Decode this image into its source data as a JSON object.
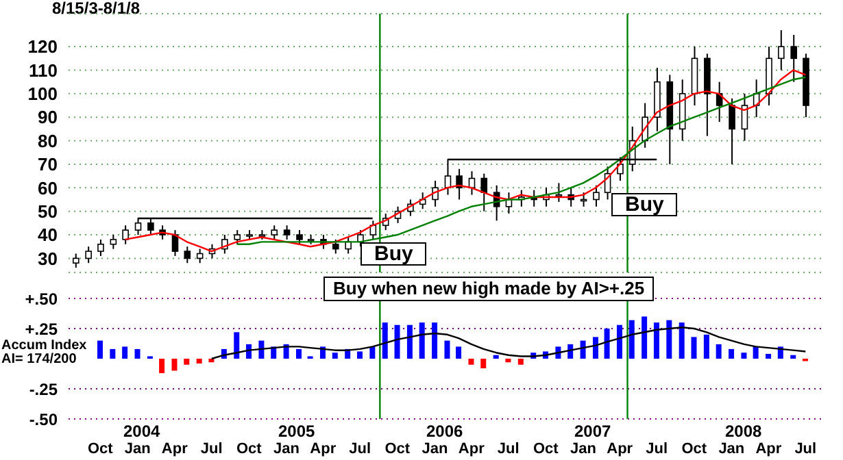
{
  "chart_data": [
    {
      "type": "candlestick",
      "title": "8/15/3-8/1/8",
      "color": "#000000",
      "x": [
        "2003-08",
        "2003-09",
        "2003-10",
        "2003-11",
        "2003-12",
        "2004-01",
        "2004-02",
        "2004-03",
        "2004-04",
        "2004-05",
        "2004-06",
        "2004-07",
        "2004-08",
        "2004-09",
        "2004-10",
        "2004-11",
        "2004-12",
        "2005-01",
        "2005-02",
        "2005-03",
        "2005-04",
        "2005-05",
        "2005-06",
        "2005-07",
        "2005-08",
        "2005-09",
        "2005-10",
        "2005-11",
        "2005-12",
        "2006-01",
        "2006-02",
        "2006-03",
        "2006-04",
        "2006-05",
        "2006-06",
        "2006-07",
        "2006-08",
        "2006-09",
        "2006-10",
        "2006-11",
        "2006-12",
        "2007-01",
        "2007-02",
        "2007-03",
        "2007-04",
        "2007-05",
        "2007-06",
        "2007-07",
        "2007-08",
        "2007-09",
        "2007-10",
        "2007-11",
        "2007-12",
        "2008-01",
        "2008-02",
        "2008-03",
        "2008-04",
        "2008-05",
        "2008-06",
        "2008-07"
      ],
      "ohlc": [
        [
          28,
          32,
          26,
          30
        ],
        [
          30,
          35,
          28,
          33
        ],
        [
          33,
          38,
          31,
          36
        ],
        [
          36,
          40,
          34,
          38
        ],
        [
          38,
          44,
          36,
          42
        ],
        [
          42,
          47,
          40,
          45
        ],
        [
          45,
          47,
          40,
          42
        ],
        [
          42,
          44,
          38,
          40
        ],
        [
          40,
          42,
          31,
          33
        ],
        [
          33,
          35,
          28,
          30
        ],
        [
          30,
          34,
          28,
          32
        ],
        [
          32,
          36,
          30,
          34
        ],
        [
          34,
          40,
          32,
          38
        ],
        [
          38,
          42,
          36,
          40
        ],
        [
          40,
          42,
          38,
          40
        ],
        [
          40,
          42,
          38,
          40
        ],
        [
          40,
          44,
          38,
          42
        ],
        [
          42,
          44,
          38,
          40
        ],
        [
          40,
          42,
          36,
          38
        ],
        [
          38,
          40,
          36,
          38
        ],
        [
          38,
          40,
          34,
          36
        ],
        [
          36,
          38,
          32,
          34
        ],
        [
          34,
          39,
          32,
          37
        ],
        [
          37,
          42,
          35,
          40
        ],
        [
          40,
          46,
          38,
          44
        ],
        [
          44,
          49,
          42,
          47
        ],
        [
          47,
          52,
          45,
          50
        ],
        [
          50,
          55,
          48,
          53
        ],
        [
          53,
          58,
          51,
          55
        ],
        [
          55,
          63,
          52,
          60
        ],
        [
          60,
          72,
          57,
          65
        ],
        [
          65,
          68,
          55,
          60
        ],
        [
          60,
          67,
          57,
          64
        ],
        [
          64,
          66,
          50,
          58
        ],
        [
          58,
          61,
          46,
          52
        ],
        [
          52,
          58,
          49,
          55
        ],
        [
          55,
          59,
          52,
          56
        ],
        [
          56,
          59,
          52,
          55
        ],
        [
          55,
          60,
          52,
          57
        ],
        [
          57,
          62,
          54,
          57
        ],
        [
          57,
          60,
          52,
          55
        ],
        [
          55,
          58,
          52,
          55
        ],
        [
          55,
          61,
          52,
          58
        ],
        [
          58,
          69,
          55,
          66
        ],
        [
          66,
          73,
          63,
          70
        ],
        [
          70,
          86,
          67,
          80
        ],
        [
          80,
          96,
          77,
          90
        ],
        [
          90,
          111,
          84,
          105
        ],
        [
          105,
          108,
          70,
          85
        ],
        [
          85,
          106,
          80,
          100
        ],
        [
          100,
          120,
          95,
          115
        ],
        [
          115,
          117,
          82,
          100
        ],
        [
          100,
          105,
          88,
          95
        ],
        [
          95,
          98,
          70,
          85
        ],
        [
          85,
          100,
          80,
          95
        ],
        [
          95,
          106,
          90,
          100
        ],
        [
          100,
          120,
          95,
          115
        ],
        [
          115,
          127,
          110,
          120
        ],
        [
          120,
          125,
          105,
          115
        ],
        [
          115,
          117,
          90,
          95
        ]
      ],
      "series": [
        {
          "type": "line",
          "color": "#ff0000",
          "values": [
            null,
            null,
            null,
            null,
            38,
            39,
            40,
            41,
            40,
            37,
            35,
            33,
            35,
            37,
            38,
            39,
            38,
            37,
            36,
            35,
            36,
            37,
            39,
            41,
            44,
            46,
            49,
            52,
            55,
            58,
            60,
            61,
            60,
            58,
            56,
            55,
            57,
            56,
            56,
            56,
            56,
            57,
            60,
            64,
            70,
            77,
            85,
            92,
            95,
            97,
            100,
            101,
            100,
            95,
            93,
            95,
            100,
            106,
            110,
            108
          ]
        },
        {
          "type": "line",
          "color": "#008000",
          "values": [
            null,
            null,
            null,
            null,
            null,
            null,
            null,
            null,
            null,
            null,
            null,
            null,
            null,
            36,
            36,
            37,
            37,
            37,
            37,
            37,
            37,
            37,
            37,
            37,
            38,
            39,
            40,
            42,
            44,
            46,
            48,
            50,
            52,
            53,
            54,
            55,
            55,
            56,
            57,
            58,
            60,
            62,
            65,
            68,
            72,
            76,
            80,
            83,
            86,
            88,
            90,
            92,
            94,
            96,
            98,
            100,
            102,
            104,
            106,
            107
          ]
        },
        {
          "type": "line",
          "color": "#000000",
          "x": [
            "2004-01",
            "2005-08"
          ],
          "values": [
            47,
            47
          ]
        },
        {
          "type": "line",
          "color": "#000000",
          "x": [
            "2006-02",
            "2007-07"
          ],
          "values": [
            72,
            72
          ]
        }
      ],
      "xlim": [
        "2003-07-15",
        "2008-08-15"
      ],
      "ylim": [
        24,
        134
      ],
      "yticks": [
        30,
        40,
        50,
        60,
        70,
        80,
        90,
        100,
        110,
        120
      ],
      "grid": "y",
      "tick_labels": "y",
      "ref_lines": [
        {
          "axis": "x",
          "value": "2005-08-19",
          "color": "#008000"
        },
        {
          "axis": "x",
          "value": "2007-04-20",
          "color": "#008000"
        }
      ],
      "annotations": [
        "Buy",
        "Buy"
      ]
    },
    {
      "type": "bar",
      "ylabel": "Accum Index AI= 174/200",
      "x": [
        "2003-10",
        "2003-11",
        "2003-12",
        "2004-01",
        "2004-02",
        "2004-03",
        "2004-04",
        "2004-05",
        "2004-06",
        "2004-07",
        "2004-08",
        "2004-09",
        "2004-10",
        "2004-11",
        "2004-12",
        "2005-01",
        "2005-02",
        "2005-03",
        "2005-04",
        "2005-05",
        "2005-06",
        "2005-07",
        "2005-08",
        "2005-09",
        "2005-10",
        "2005-11",
        "2005-12",
        "2006-01",
        "2006-02",
        "2006-03",
        "2006-04",
        "2006-05",
        "2006-06",
        "2006-07",
        "2006-08",
        "2006-09",
        "2006-10",
        "2006-11",
        "2006-12",
        "2007-01",
        "2007-02",
        "2007-03",
        "2007-04",
        "2007-05",
        "2007-06",
        "2007-07",
        "2007-08",
        "2007-09",
        "2007-10",
        "2007-11",
        "2007-12",
        "2008-01",
        "2008-02",
        "2008-03",
        "2008-04",
        "2008-05",
        "2008-06",
        "2008-07"
      ],
      "values": [
        0.15,
        0.08,
        0.1,
        0.08,
        0.02,
        -0.12,
        -0.1,
        -0.05,
        -0.04,
        -0.03,
        0.08,
        0.22,
        0.12,
        0.15,
        0.1,
        0.12,
        0.08,
        0.02,
        0.1,
        0.05,
        0.08,
        0.06,
        0.1,
        0.3,
        0.28,
        0.28,
        0.3,
        0.3,
        0.15,
        0.1,
        -0.05,
        -0.08,
        0.03,
        -0.03,
        -0.05,
        0.05,
        0.06,
        0.1,
        0.12,
        0.15,
        0.18,
        0.25,
        0.28,
        0.32,
        0.35,
        0.3,
        0.32,
        0.3,
        0.18,
        0.2,
        0.12,
        0.08,
        0.05,
        0.1,
        0.04,
        0.1,
        0.03,
        -0.02
      ],
      "colors": [
        "#0000ff",
        "#0000ff",
        "#0000ff",
        "#0000ff",
        "#0000ff",
        "#ff0000",
        "#ff0000",
        "#ff0000",
        "#ff0000",
        "#ff0000",
        "#0000ff",
        "#0000ff",
        "#0000ff",
        "#0000ff",
        "#0000ff",
        "#0000ff",
        "#0000ff",
        "#0000ff",
        "#0000ff",
        "#0000ff",
        "#0000ff",
        "#0000ff",
        "#0000ff",
        "#0000ff",
        "#0000ff",
        "#0000ff",
        "#0000ff",
        "#0000ff",
        "#0000ff",
        "#0000ff",
        "#ff0000",
        "#ff0000",
        "#0000ff",
        "#ff0000",
        "#ff0000",
        "#0000ff",
        "#0000ff",
        "#0000ff",
        "#0000ff",
        "#0000ff",
        "#0000ff",
        "#0000ff",
        "#0000ff",
        "#0000ff",
        "#0000ff",
        "#0000ff",
        "#0000ff",
        "#0000ff",
        "#0000ff",
        "#0000ff",
        "#0000ff",
        "#0000ff",
        "#0000ff",
        "#0000ff",
        "#0000ff",
        "#0000ff",
        "#0000ff",
        "#ff0000"
      ],
      "series": [
        {
          "type": "line",
          "color": "#000000",
          "values": [
            null,
            null,
            null,
            null,
            null,
            null,
            null,
            null,
            null,
            0.0,
            0.03,
            0.05,
            0.07,
            0.08,
            0.09,
            0.1,
            0.1,
            0.09,
            0.08,
            0.07,
            0.07,
            0.08,
            0.1,
            0.13,
            0.16,
            0.18,
            0.2,
            0.21,
            0.2,
            0.17,
            0.12,
            0.08,
            0.05,
            0.03,
            0.02,
            0.02,
            0.03,
            0.05,
            0.07,
            0.09,
            0.11,
            0.14,
            0.17,
            0.2,
            0.22,
            0.24,
            0.25,
            0.26,
            0.25,
            0.22,
            0.18,
            0.15,
            0.12,
            0.1,
            0.09,
            0.08,
            0.07,
            0.06
          ]
        }
      ],
      "xlim": [
        "2003-07-15",
        "2008-08-15"
      ],
      "ylim": [
        -0.5,
        0.5
      ],
      "yticks": [
        {
          "value": 0.5,
          "label": "+.50"
        },
        {
          "value": 0.25,
          "label": "+.25"
        },
        {
          "value": -0.25,
          "label": "-.25"
        },
        {
          "value": -0.5,
          "label": "-.50"
        }
      ],
      "xticks": [
        {
          "value": "2003-10",
          "label": "Oct"
        },
        {
          "value": "2004-01",
          "label": "Jan"
        },
        {
          "value": "2004-04",
          "label": "Apr"
        },
        {
          "value": "2004-07",
          "label": "Jul"
        },
        {
          "value": "2004-10",
          "label": "Oct"
        },
        {
          "value": "2005-01",
          "label": "Jan"
        },
        {
          "value": "2005-04",
          "label": "Apr"
        },
        {
          "value": "2005-07",
          "label": "Jul"
        },
        {
          "value": "2005-10",
          "label": "Oct"
        },
        {
          "value": "2006-01",
          "label": "Jan"
        },
        {
          "value": "2006-04",
          "label": "Apr"
        },
        {
          "value": "2006-07",
          "label": "Jul"
        },
        {
          "value": "2006-10",
          "label": "Oct"
        },
        {
          "value": "2007-01",
          "label": "Jan"
        },
        {
          "value": "2007-04",
          "label": "Apr"
        },
        {
          "value": "2007-07",
          "label": "Jul"
        },
        {
          "value": "2007-10",
          "label": "Oct"
        },
        {
          "value": "2008-01",
          "label": "Jan"
        },
        {
          "value": "2008-04",
          "label": "Apr"
        },
        {
          "value": "2008-07",
          "label": "Jul"
        }
      ],
      "grid": "y",
      "ref_lines": [
        {
          "axis": "x",
          "value": "2005-08-19",
          "color": "#008000"
        },
        {
          "axis": "x",
          "value": "2007-04-20",
          "color": "#008000"
        }
      ],
      "annotations": [
        "Buy when new high made by AI>+.25",
        "2004",
        "2005",
        "2006",
        "2007",
        "2008"
      ]
    }
  ]
}
